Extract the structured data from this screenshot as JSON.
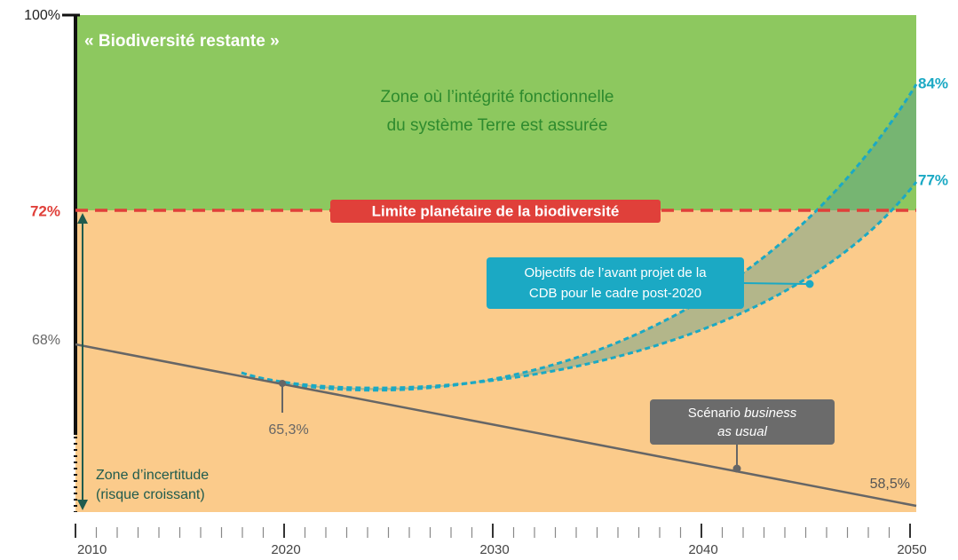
{
  "header": {
    "title": "« Biodiversité restante »"
  },
  "axis": {
    "top": "100%",
    "limit": "72%",
    "start": "68%",
    "years": [
      "2010",
      "2020",
      "2030",
      "2040",
      "2050"
    ]
  },
  "zones": {
    "safe": [
      "Zone où l’intégrité fonctionnelle",
      "du système Terre est assurée"
    ],
    "uncertainty": [
      "Zone d’incertitude",
      "(risque croissant)"
    ]
  },
  "limit_label": "Limite planétaire de la biodiversité",
  "annotations": {
    "value_2020": "65,3%",
    "value_2050_bau": "58,5%",
    "target_high": "84%",
    "target_low": "77%",
    "cdb": [
      "Objectifs de l’avant projet de la",
      "CDB pour le cadre post-2020"
    ],
    "bau": {
      "prefix": "Scénario",
      "italic_1": "business",
      "italic_2": "as usual"
    }
  }
}
